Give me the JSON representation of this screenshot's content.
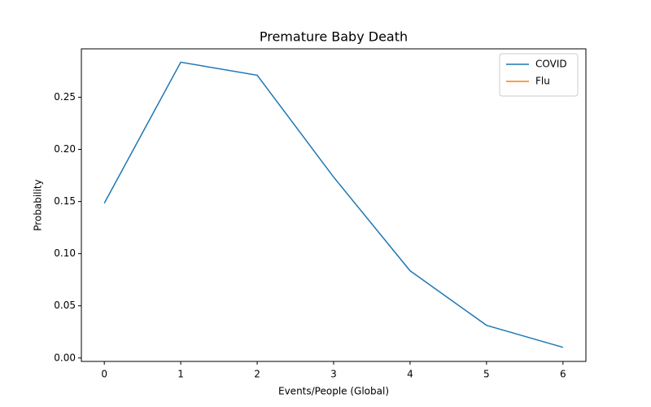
{
  "chart_data": {
    "type": "line",
    "title": "Premature Baby Death",
    "xlabel": "Events/People (Global)",
    "ylabel": "Probability",
    "x": [
      0,
      1,
      2,
      3,
      4,
      5,
      6
    ],
    "series": [
      {
        "name": "COVID",
        "color": "#1f77b4",
        "values": [
          0.1484,
          0.2836,
          0.2711,
          0.1734,
          0.0836,
          0.0313,
          0.0102
        ]
      },
      {
        "name": "Flu",
        "color": "#ff7f0e",
        "values": [
          null,
          null,
          null,
          null,
          null,
          null,
          null
        ]
      }
    ],
    "xlim": [
      -0.3,
      6.3
    ],
    "xticks": [
      0,
      1,
      2,
      3,
      4,
      5,
      6
    ],
    "ylim": [
      -0.0033,
      0.2964
    ],
    "yticks": [
      {
        "value": 0,
        "label": "0.00"
      },
      {
        "value": 0.05,
        "label": "0.05"
      },
      {
        "value": 0.1,
        "label": "0.10"
      },
      {
        "value": 0.15,
        "label": "0.15"
      },
      {
        "value": 0.2,
        "label": "0.20"
      },
      {
        "value": 0.25,
        "label": "0.25"
      }
    ],
    "legend": "upper right"
  }
}
